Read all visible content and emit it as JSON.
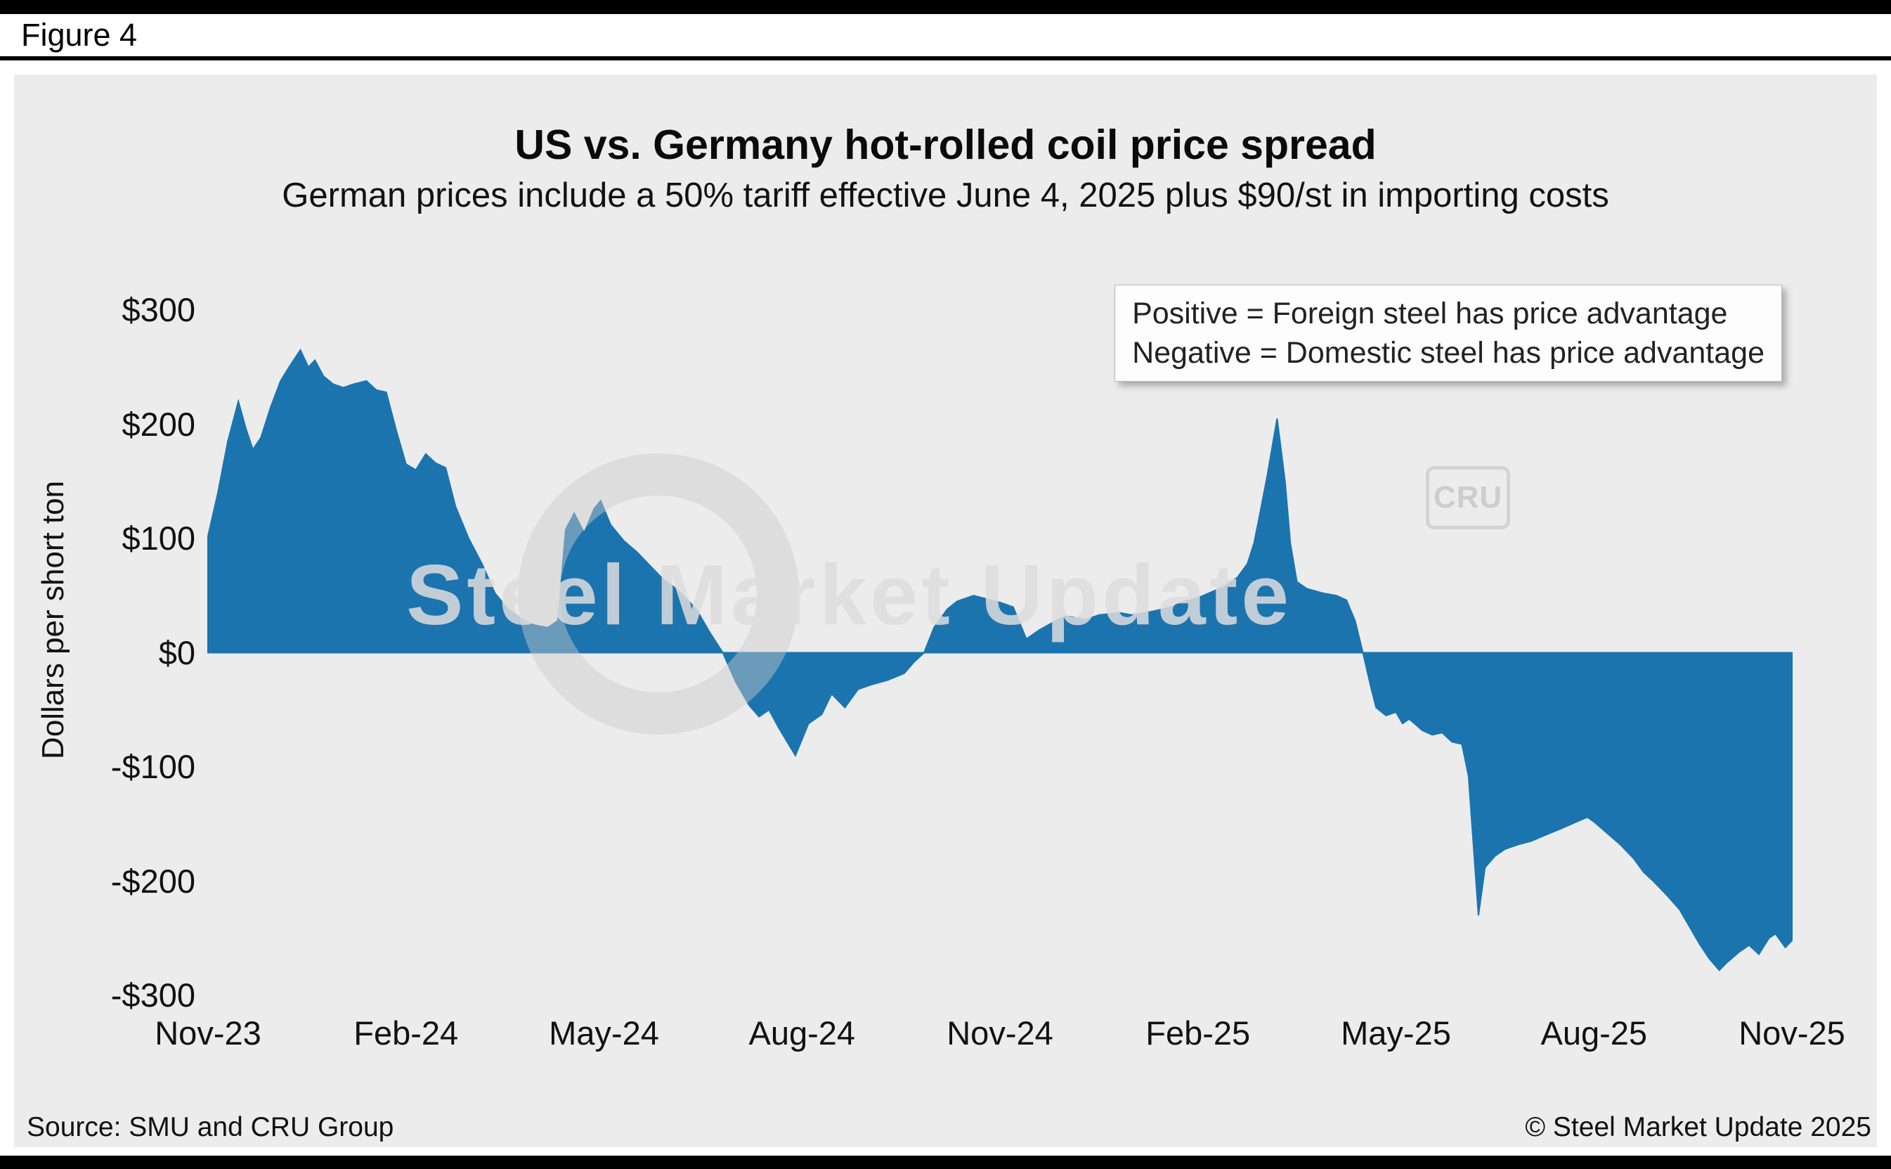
{
  "window": {
    "figure_label": "Figure 4"
  },
  "colors": {
    "accent_blue": "#1b74ae",
    "panel_bg": "#ececec",
    "frame_black": "#000000",
    "legend_bg": "#fdfdfd"
  },
  "watermark": {
    "text": "Steel Market Update",
    "logo": "CRU"
  },
  "footer": {
    "source": "Source: SMU and CRU Group",
    "copyright": "© Steel Market Update 2025"
  },
  "chart_data": {
    "type": "area",
    "title": "US vs. Germany hot-rolled coil price spread",
    "subtitle": "German prices include a 50% tariff effective June 4, 2025 plus $90/st in importing costs",
    "ylabel": "Dollars per short ton",
    "xlabel": "",
    "x_unit": "months since Nov-2023 (weekly observations)",
    "xlim": [
      0,
      24
    ],
    "ylim": [
      -300,
      300
    ],
    "grid": false,
    "legend_position": "top-right",
    "fill_color": "#1b74ae",
    "annotations": [
      "Positive = Foreign steel has price advantage",
      "Negative = Domestic steel has price advantage"
    ],
    "x_ticks": [
      {
        "pos": 0,
        "label": "Nov-23"
      },
      {
        "pos": 3,
        "label": "Feb-24"
      },
      {
        "pos": 6,
        "label": "May-24"
      },
      {
        "pos": 9,
        "label": "Aug-24"
      },
      {
        "pos": 12,
        "label": "Nov-24"
      },
      {
        "pos": 15,
        "label": "Feb-25"
      },
      {
        "pos": 18,
        "label": "May-25"
      },
      {
        "pos": 21,
        "label": "Aug-25"
      },
      {
        "pos": 24,
        "label": "Nov-25"
      }
    ],
    "y_ticks": [
      {
        "value": 300,
        "label": "$300"
      },
      {
        "value": 200,
        "label": "$200"
      },
      {
        "value": 100,
        "label": "$100"
      },
      {
        "value": 0,
        "label": "$0"
      },
      {
        "value": -100,
        "label": "-$100"
      },
      {
        "value": -200,
        "label": "-$200"
      },
      {
        "value": -300,
        "label": "-$300"
      }
    ],
    "series": [
      {
        "name": "US minus Germany HRC price spread ($/short ton)",
        "points": [
          [
            0,
            102
          ],
          [
            0.15,
            140
          ],
          [
            0.3,
            185
          ],
          [
            0.46,
            220
          ],
          [
            0.58,
            195
          ],
          [
            0.68,
            178
          ],
          [
            0.8,
            188
          ],
          [
            0.95,
            215
          ],
          [
            1.1,
            238
          ],
          [
            1.25,
            252
          ],
          [
            1.4,
            265
          ],
          [
            1.52,
            250
          ],
          [
            1.62,
            256
          ],
          [
            1.75,
            242
          ],
          [
            1.9,
            235
          ],
          [
            2.05,
            232
          ],
          [
            2.2,
            235
          ],
          [
            2.4,
            238
          ],
          [
            2.55,
            230
          ],
          [
            2.7,
            228
          ],
          [
            2.85,
            195
          ],
          [
            3,
            165
          ],
          [
            3.15,
            160
          ],
          [
            3.3,
            174
          ],
          [
            3.45,
            166
          ],
          [
            3.6,
            162
          ],
          [
            3.75,
            128
          ],
          [
            3.95,
            100
          ],
          [
            4.15,
            78
          ],
          [
            4.35,
            52
          ],
          [
            4.55,
            38
          ],
          [
            4.75,
            30
          ],
          [
            4.95,
            24
          ],
          [
            5.15,
            22
          ],
          [
            5.3,
            28
          ],
          [
            5.42,
            108
          ],
          [
            5.55,
            122
          ],
          [
            5.7,
            105
          ],
          [
            5.85,
            126
          ],
          [
            5.95,
            133
          ],
          [
            6.1,
            112
          ],
          [
            6.3,
            98
          ],
          [
            6.5,
            88
          ],
          [
            6.7,
            76
          ],
          [
            6.9,
            64
          ],
          [
            7.05,
            58
          ],
          [
            7.2,
            50
          ],
          [
            7.4,
            38
          ],
          [
            7.6,
            18
          ],
          [
            7.8,
            0
          ],
          [
            8,
            -26
          ],
          [
            8.2,
            -46
          ],
          [
            8.35,
            -56
          ],
          [
            8.5,
            -50
          ],
          [
            8.65,
            -66
          ],
          [
            8.9,
            -90
          ],
          [
            9.1,
            -62
          ],
          [
            9.3,
            -54
          ],
          [
            9.45,
            -36
          ],
          [
            9.65,
            -48
          ],
          [
            9.85,
            -32
          ],
          [
            10.05,
            -28
          ],
          [
            10.3,
            -24
          ],
          [
            10.55,
            -18
          ],
          [
            10.7,
            -8
          ],
          [
            10.85,
            0
          ],
          [
            11,
            22
          ],
          [
            11.2,
            38
          ],
          [
            11.35,
            45
          ],
          [
            11.6,
            50
          ],
          [
            11.8,
            47
          ],
          [
            12,
            44
          ],
          [
            12.2,
            40
          ],
          [
            12.4,
            12
          ],
          [
            12.6,
            20
          ],
          [
            12.85,
            28
          ],
          [
            13,
            32
          ],
          [
            13.3,
            29
          ],
          [
            13.5,
            33
          ],
          [
            13.8,
            35
          ],
          [
            14,
            33
          ],
          [
            14.3,
            36
          ],
          [
            14.6,
            40
          ],
          [
            14.75,
            44
          ],
          [
            15,
            48
          ],
          [
            15.2,
            53
          ],
          [
            15.4,
            58
          ],
          [
            15.6,
            66
          ],
          [
            15.75,
            78
          ],
          [
            15.85,
            96
          ],
          [
            15.95,
            125
          ],
          [
            16.05,
            155
          ],
          [
            16.2,
            205
          ],
          [
            16.32,
            150
          ],
          [
            16.4,
            96
          ],
          [
            16.5,
            62
          ],
          [
            16.65,
            56
          ],
          [
            16.9,
            52
          ],
          [
            17.1,
            50
          ],
          [
            17.25,
            46
          ],
          [
            17.38,
            28
          ],
          [
            17.5,
            0
          ],
          [
            17.62,
            -30
          ],
          [
            17.7,
            -48
          ],
          [
            17.85,
            -55
          ],
          [
            18,
            -52
          ],
          [
            18.1,
            -62
          ],
          [
            18.2,
            -58
          ],
          [
            18.4,
            -68
          ],
          [
            18.55,
            -72
          ],
          [
            18.7,
            -70
          ],
          [
            18.85,
            -78
          ],
          [
            19,
            -80
          ],
          [
            19.1,
            -108
          ],
          [
            19.25,
            -230
          ],
          [
            19.35,
            -188
          ],
          [
            19.5,
            -178
          ],
          [
            19.65,
            -172
          ],
          [
            19.85,
            -168
          ],
          [
            20.05,
            -165
          ],
          [
            20.25,
            -160
          ],
          [
            20.5,
            -154
          ],
          [
            20.7,
            -149
          ],
          [
            20.9,
            -144
          ],
          [
            21,
            -148
          ],
          [
            21.2,
            -158
          ],
          [
            21.4,
            -168
          ],
          [
            21.6,
            -180
          ],
          [
            21.75,
            -192
          ],
          [
            21.9,
            -200
          ],
          [
            22.1,
            -212
          ],
          [
            22.3,
            -225
          ],
          [
            22.45,
            -240
          ],
          [
            22.6,
            -255
          ],
          [
            22.75,
            -268
          ],
          [
            22.9,
            -278
          ],
          [
            23,
            -272
          ],
          [
            23.2,
            -262
          ],
          [
            23.35,
            -256
          ],
          [
            23.5,
            -264
          ],
          [
            23.65,
            -250
          ],
          [
            23.75,
            -246
          ],
          [
            23.9,
            -258
          ],
          [
            24,
            -252
          ]
        ]
      }
    ]
  }
}
